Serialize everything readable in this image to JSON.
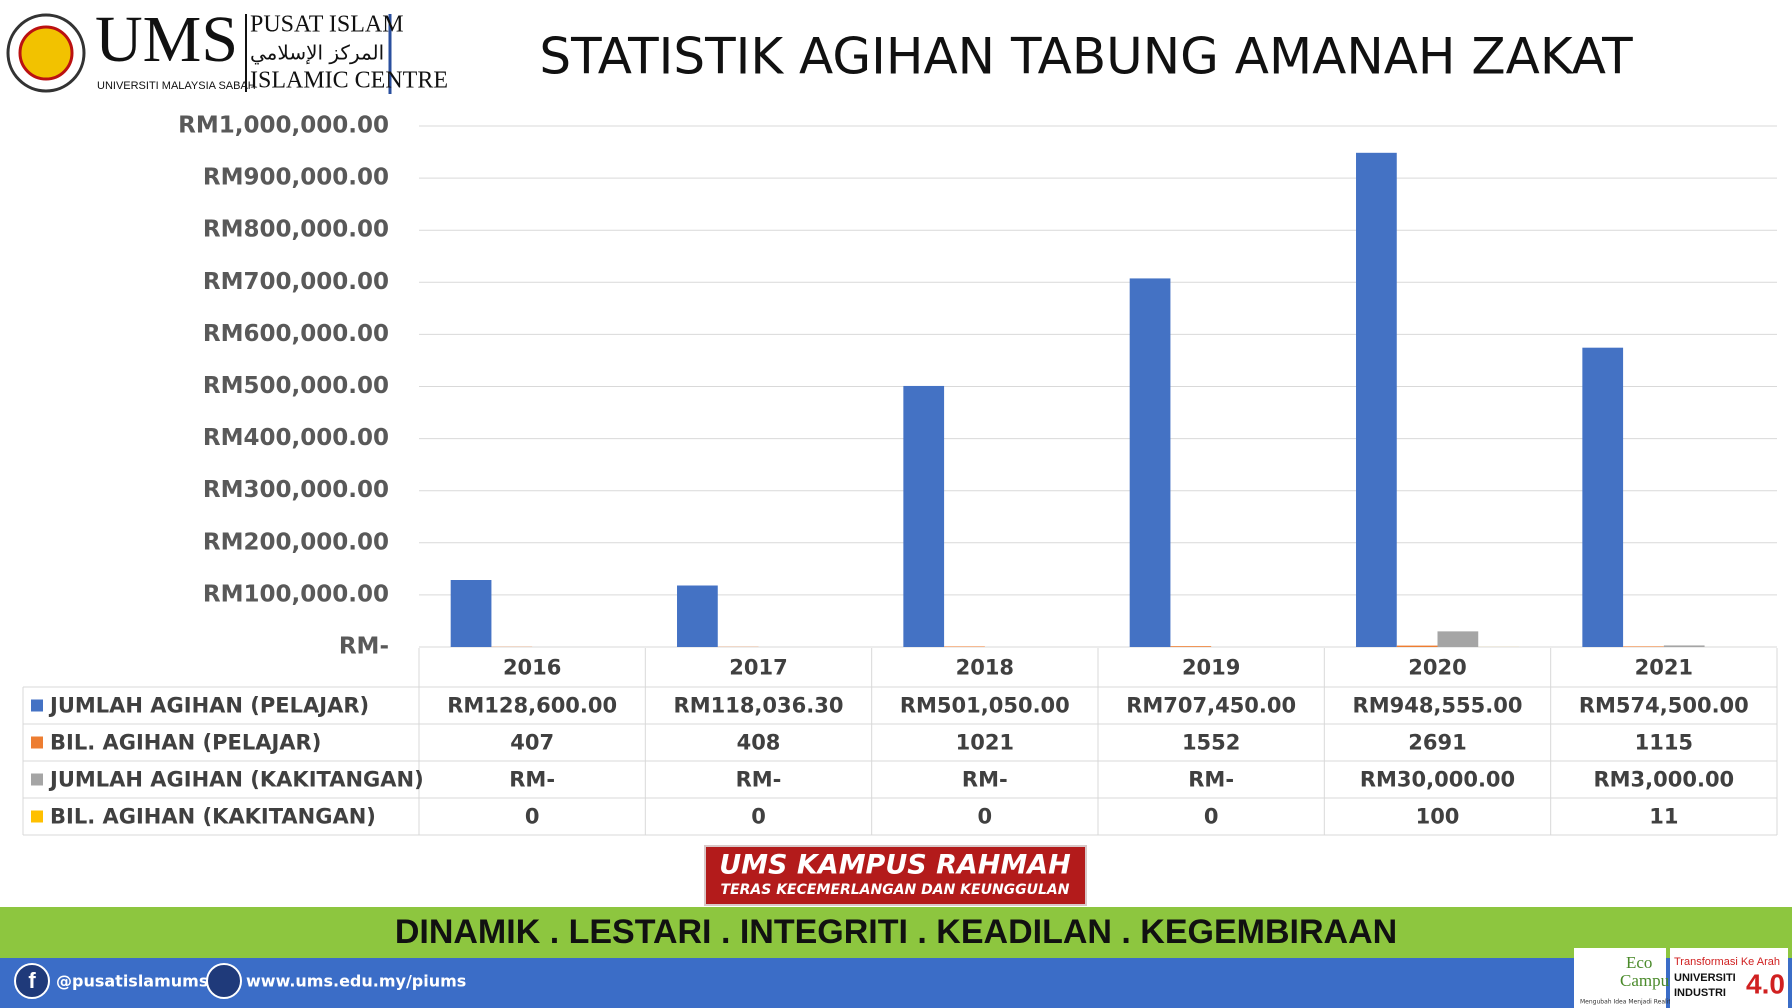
{
  "header": {
    "logo_short": "UMS",
    "logo_name": "UNIVERSITI MALAYSIA SABAH",
    "centre_ms": "PUSAT ISLAM",
    "centre_ar": "المركز الإسلامي",
    "centre_en": "ISLAMIC CENTRE"
  },
  "chart_data": {
    "type": "bar",
    "title": "STATISTIK AGIHAN TABUNG AMANAH ZAKAT",
    "categories": [
      "2016",
      "2017",
      "2018",
      "2019",
      "2020",
      "2021"
    ],
    "series": [
      {
        "name": "JUMLAH AGIHAN (PELAJAR)",
        "color": "#4472c4",
        "values": [
          128600,
          118036.3,
          501050,
          707450,
          948555,
          574500
        ],
        "value_labels": [
          "RM128,600.00",
          "RM118,036.30",
          "RM501,050.00",
          "RM707,450.00",
          "RM948,555.00",
          "RM574,500.00"
        ]
      },
      {
        "name": "BIL. AGIHAN (PELAJAR)",
        "color": "#ed7d31",
        "values": [
          407,
          408,
          1021,
          1552,
          2691,
          1115
        ]
      },
      {
        "name": "JUMLAH AGIHAN (KAKITANGAN)",
        "color": "#a5a5a5",
        "values": [
          0,
          0,
          0,
          0,
          30000,
          3000
        ],
        "value_labels": [
          "RM-",
          "RM-",
          "RM-",
          "RM-",
          "RM30,000.00",
          "RM3,000.00"
        ]
      },
      {
        "name": "BIL. AGIHAN (KAKITANGAN)",
        "color": "#ffc000",
        "values": [
          0,
          0,
          0,
          0,
          100,
          11
        ]
      }
    ],
    "ylim": [
      0,
      1000000
    ],
    "yticks": [
      {
        "value": 0,
        "label": "RM-"
      },
      {
        "value": 100000,
        "label": "RM100,000.00"
      },
      {
        "value": 200000,
        "label": "RM200,000.00"
      },
      {
        "value": 300000,
        "label": "RM300,000.00"
      },
      {
        "value": 400000,
        "label": "RM400,000.00"
      },
      {
        "value": 500000,
        "label": "RM500,000.00"
      },
      {
        "value": 600000,
        "label": "RM600,000.00"
      },
      {
        "value": 700000,
        "label": "RM700,000.00"
      },
      {
        "value": 800000,
        "label": "RM800,000.00"
      },
      {
        "value": 900000,
        "label": "RM900,000.00"
      },
      {
        "value": 1000000,
        "label": "RM1,000,000.00"
      }
    ],
    "grid": true
  },
  "banner": {
    "title": "UMS KAMPUS RAHMAH",
    "subtitle": "TERAS KECEMERLANGAN DAN KEUNGGULAN"
  },
  "motto": "DINAMIK . LESTARI . INTEGRITI . KEADILAN . KEGEMBIRAAN",
  "footer": {
    "facebook": "@pusatislamums",
    "website": "www.ums.edu.my/piums",
    "eco": "Eco",
    "campus": "Campus",
    "eco_tagline": "Mengubah Idea Menjadi Realiti",
    "transform": "Transformasi Ke Arah",
    "univ": "UNIVERSITI",
    "industri": "INDUSTRI",
    "version": "4.0"
  }
}
